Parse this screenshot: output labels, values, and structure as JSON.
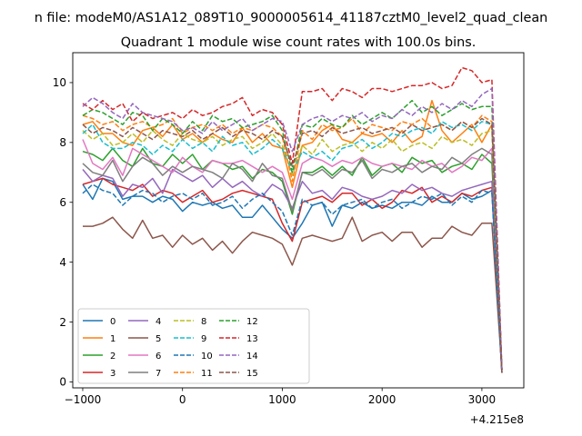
{
  "figure": {
    "suptitle": "n file: modeM0/AS1A12_089T10_9000005614_41187cztM0_level2_quad_clean",
    "offset_label": "+4.215e8"
  },
  "chart_data": {
    "type": "line",
    "title": "Quadrant 1 module wise count rates with 100.0s bins.",
    "xlabel": "",
    "ylabel": "",
    "x_offset": 421500000,
    "xlim": [
      -1100,
      3420
    ],
    "ylim": [
      -0.2,
      11.0
    ],
    "xticks": [
      -1000,
      0,
      1000,
      2000,
      3000
    ],
    "yticks": [
      0,
      2,
      4,
      6,
      8,
      10
    ],
    "grid": false,
    "legend": {
      "placement": "lower left",
      "columns": 5
    },
    "x": [
      -1000,
      -900,
      -800,
      -700,
      -600,
      -500,
      -400,
      -300,
      -200,
      -100,
      0,
      100,
      200,
      300,
      400,
      500,
      600,
      700,
      800,
      900,
      1000,
      1100,
      1200,
      1300,
      1400,
      1500,
      1600,
      1700,
      1800,
      1900,
      2000,
      2100,
      2200,
      2300,
      2400,
      2500,
      2600,
      2700,
      2800,
      2900,
      3000,
      3100,
      3200
    ],
    "series": [
      {
        "name": "0",
        "color": "#1f77b4",
        "dash": "solid",
        "values": [
          6.6,
          6.1,
          6.8,
          6.7,
          6.1,
          6.2,
          6.2,
          6.0,
          6.2,
          6.1,
          5.7,
          6.0,
          5.9,
          6.0,
          5.8,
          5.9,
          5.5,
          5.5,
          5.9,
          5.5,
          5.1,
          4.8,
          5.3,
          5.9,
          6.0,
          5.2,
          5.9,
          5.8,
          6.0,
          5.8,
          5.9,
          5.8,
          6.0,
          6.0,
          5.9,
          6.2,
          6.0,
          6.0,
          6.3,
          6.1,
          6.2,
          6.4,
          0.3
        ]
      },
      {
        "name": "1",
        "color": "#ff7f0e",
        "dash": "solid",
        "values": [
          8.6,
          8.7,
          8.3,
          8.3,
          8.0,
          7.9,
          8.4,
          8.5,
          8.2,
          8.6,
          8.1,
          8.3,
          8.0,
          8.3,
          8.1,
          8.0,
          8.5,
          8.0,
          8.3,
          7.9,
          7.8,
          6.5,
          7.9,
          8.0,
          8.4,
          8.6,
          8.1,
          8.0,
          8.3,
          8.2,
          8.3,
          8.0,
          8.4,
          8.0,
          8.2,
          9.4,
          8.4,
          8.0,
          8.3,
          8.6,
          8.0,
          8.6,
          0.4
        ]
      },
      {
        "name": "2",
        "color": "#2ca02c",
        "dash": "solid",
        "values": [
          7.7,
          7.6,
          7.4,
          7.8,
          7.4,
          7.2,
          7.8,
          7.3,
          7.2,
          7.6,
          7.3,
          7.6,
          7.1,
          7.4,
          7.3,
          7.1,
          7.2,
          6.8,
          7.1,
          7.0,
          6.7,
          5.6,
          7.0,
          7.0,
          7.2,
          6.9,
          7.2,
          6.9,
          7.5,
          6.9,
          7.2,
          7.3,
          7.0,
          7.5,
          7.3,
          7.4,
          7.0,
          7.2,
          7.3,
          7.1,
          7.6,
          7.3,
          0.4
        ]
      },
      {
        "name": "3",
        "color": "#d62728",
        "dash": "solid",
        "values": [
          6.6,
          6.7,
          6.8,
          6.6,
          6.5,
          6.4,
          6.6,
          6.2,
          6.4,
          6.3,
          6.0,
          6.2,
          6.4,
          6.0,
          6.1,
          6.3,
          6.4,
          6.3,
          6.2,
          6.1,
          5.3,
          4.7,
          6.0,
          6.1,
          6.2,
          6.0,
          6.3,
          6.3,
          5.9,
          6.1,
          5.8,
          6.0,
          6.4,
          6.3,
          6.5,
          6.0,
          6.2,
          6.0,
          6.3,
          6.2,
          6.4,
          6.5,
          0.3
        ]
      },
      {
        "name": "4",
        "color": "#9467bd",
        "dash": "solid",
        "values": [
          7.1,
          6.7,
          6.9,
          6.8,
          6.2,
          6.6,
          6.5,
          6.8,
          6.3,
          7.1,
          6.9,
          6.7,
          6.9,
          6.5,
          6.8,
          6.5,
          6.7,
          6.4,
          6.2,
          6.6,
          6.4,
          5.8,
          6.7,
          6.3,
          6.4,
          6.1,
          6.5,
          6.4,
          6.2,
          6.1,
          6.2,
          6.4,
          6.3,
          6.6,
          6.4,
          6.5,
          6.3,
          6.2,
          6.4,
          6.5,
          6.6,
          6.7,
          0.4
        ]
      },
      {
        "name": "5",
        "color": "#8c564b",
        "dash": "solid",
        "values": [
          5.2,
          5.2,
          5.3,
          5.5,
          5.1,
          4.8,
          5.4,
          4.8,
          4.9,
          4.5,
          4.9,
          4.6,
          4.8,
          4.4,
          4.7,
          4.3,
          4.7,
          5.0,
          4.9,
          4.8,
          4.6,
          3.9,
          4.8,
          4.9,
          4.8,
          4.7,
          4.8,
          5.5,
          4.7,
          4.9,
          5.0,
          4.7,
          5.0,
          5.0,
          4.5,
          4.8,
          4.8,
          5.2,
          5.0,
          4.9,
          5.3,
          5.3,
          0.4
        ]
      },
      {
        "name": "6",
        "color": "#e377c2",
        "dash": "solid",
        "values": [
          8.1,
          7.3,
          7.1,
          7.5,
          6.9,
          7.8,
          7.6,
          7.4,
          7.2,
          7.0,
          7.5,
          7.2,
          7.0,
          7.4,
          7.3,
          7.3,
          7.4,
          7.2,
          7.0,
          7.2,
          7.0,
          6.1,
          7.3,
          7.5,
          7.4,
          7.2,
          7.4,
          7.3,
          7.5,
          7.3,
          7.2,
          7.3,
          7.2,
          7.1,
          7.4,
          7.2,
          7.3,
          7.0,
          7.2,
          7.5,
          7.4,
          7.8,
          0.4
        ]
      },
      {
        "name": "7",
        "color": "#7f7f7f",
        "dash": "solid",
        "values": [
          7.3,
          7.0,
          6.9,
          7.4,
          6.7,
          7.2,
          7.5,
          7.3,
          6.9,
          7.2,
          7.0,
          7.2,
          7.1,
          7.0,
          6.8,
          7.3,
          7.1,
          6.7,
          7.3,
          6.9,
          6.8,
          5.7,
          7.0,
          6.9,
          7.1,
          6.8,
          7.1,
          7.0,
          7.4,
          6.8,
          7.1,
          7.0,
          7.2,
          7.3,
          7.0,
          7.2,
          7.1,
          7.5,
          7.3,
          7.6,
          7.8,
          7.6,
          0.3
        ]
      },
      {
        "name": "8",
        "color": "#bcbd22",
        "dash": "dashed",
        "values": [
          8.4,
          8.1,
          8.3,
          7.9,
          8.0,
          8.3,
          8.0,
          8.4,
          8.1,
          7.9,
          8.3,
          8.1,
          8.0,
          8.2,
          7.9,
          8.1,
          8.2,
          7.8,
          8.0,
          8.3,
          7.9,
          6.9,
          7.9,
          7.6,
          8.1,
          7.7,
          7.9,
          8.0,
          7.7,
          8.0,
          7.8,
          8.1,
          7.7,
          7.9,
          8.0,
          7.8,
          8.2,
          8.0,
          8.1,
          7.9,
          8.3,
          8.4,
          0.4
        ]
      },
      {
        "name": "9",
        "color": "#17becf",
        "dash": "dashed",
        "values": [
          8.3,
          8.6,
          8.0,
          7.8,
          7.8,
          8.0,
          7.9,
          7.6,
          7.9,
          7.7,
          8.1,
          7.8,
          8.0,
          7.7,
          8.2,
          7.9,
          8.0,
          7.6,
          7.8,
          8.1,
          7.8,
          7.0,
          7.7,
          7.5,
          7.7,
          7.4,
          7.8,
          7.9,
          8.1,
          7.8,
          8.0,
          8.3,
          8.2,
          8.4,
          8.5,
          8.3,
          8.7,
          8.5,
          8.6,
          8.4,
          8.7,
          8.6,
          0.4
        ]
      },
      {
        "name": "10",
        "color": "#1f77b4",
        "dash": "dashed",
        "values": [
          6.3,
          6.6,
          6.4,
          6.3,
          5.9,
          6.2,
          6.4,
          6.3,
          6.0,
          6.2,
          6.3,
          6.1,
          6.3,
          5.9,
          6.0,
          6.2,
          5.8,
          6.1,
          6.3,
          6.0,
          5.7,
          4.9,
          6.1,
          5.9,
          6.0,
          5.6,
          5.9,
          6.0,
          6.1,
          5.8,
          6.0,
          6.1,
          5.8,
          6.0,
          6.2,
          6.1,
          6.3,
          5.9,
          6.2,
          6.0,
          6.4,
          6.3,
          0.3
        ]
      },
      {
        "name": "11",
        "color": "#ff7f0e",
        "dash": "dashed",
        "values": [
          8.9,
          8.8,
          8.6,
          8.7,
          8.4,
          8.6,
          8.7,
          8.5,
          8.6,
          8.8,
          8.3,
          8.5,
          8.6,
          8.4,
          8.6,
          8.3,
          8.5,
          8.4,
          8.6,
          8.5,
          8.2,
          6.7,
          8.4,
          8.1,
          8.6,
          8.4,
          8.5,
          8.8,
          8.3,
          8.6,
          8.5,
          8.4,
          8.7,
          8.6,
          8.8,
          8.5,
          8.6,
          8.4,
          8.7,
          8.5,
          8.9,
          8.7,
          0.4
        ]
      },
      {
        "name": "12",
        "color": "#2ca02c",
        "dash": "dashed",
        "values": [
          8.9,
          9.1,
          9.0,
          8.8,
          8.6,
          9.0,
          8.9,
          8.4,
          8.8,
          8.6,
          8.3,
          8.7,
          8.4,
          8.9,
          8.7,
          8.8,
          8.5,
          8.6,
          8.7,
          8.9,
          8.4,
          7.0,
          8.6,
          8.5,
          8.8,
          8.6,
          8.5,
          8.9,
          8.6,
          8.8,
          9.0,
          8.8,
          9.1,
          9.4,
          9.0,
          9.2,
          8.9,
          9.1,
          9.3,
          9.1,
          9.2,
          9.2,
          0.4
        ]
      },
      {
        "name": "13",
        "color": "#d62728",
        "dash": "dashed",
        "values": [
          9.3,
          9.1,
          9.4,
          9.1,
          9.3,
          8.7,
          9.0,
          8.8,
          8.9,
          9.0,
          8.8,
          9.1,
          8.9,
          9.0,
          9.2,
          9.3,
          9.5,
          8.9,
          9.1,
          9.0,
          8.6,
          7.3,
          9.7,
          9.7,
          9.8,
          9.4,
          9.8,
          9.7,
          9.5,
          9.8,
          9.8,
          9.7,
          9.8,
          9.9,
          9.9,
          10.0,
          9.8,
          9.9,
          10.5,
          10.4,
          10.0,
          10.1,
          0.4
        ]
      },
      {
        "name": "14",
        "color": "#9467bd",
        "dash": "dashed",
        "values": [
          9.2,
          9.5,
          9.3,
          9.0,
          8.8,
          9.3,
          9.0,
          8.9,
          8.8,
          8.7,
          8.4,
          8.5,
          8.3,
          8.7,
          8.4,
          8.6,
          8.8,
          8.4,
          8.6,
          8.8,
          8.7,
          7.7,
          8.6,
          8.8,
          8.9,
          8.7,
          8.9,
          8.8,
          9.0,
          8.7,
          8.9,
          8.8,
          9.1,
          8.9,
          9.2,
          9.0,
          9.3,
          9.1,
          9.4,
          9.2,
          9.6,
          9.8,
          0.4
        ]
      },
      {
        "name": "15",
        "color": "#8c564b",
        "dash": "dashed",
        "values": [
          8.6,
          8.3,
          8.5,
          8.4,
          8.2,
          8.5,
          8.3,
          8.1,
          8.4,
          8.3,
          8.2,
          8.4,
          8.1,
          8.3,
          8.5,
          8.2,
          8.4,
          8.3,
          8.1,
          8.4,
          8.2,
          7.2,
          8.3,
          8.4,
          8.2,
          8.5,
          8.3,
          8.4,
          8.5,
          8.3,
          8.4,
          8.5,
          8.3,
          8.6,
          8.4,
          8.5,
          8.6,
          8.4,
          8.7,
          8.5,
          8.8,
          8.6,
          0.3
        ]
      }
    ]
  }
}
